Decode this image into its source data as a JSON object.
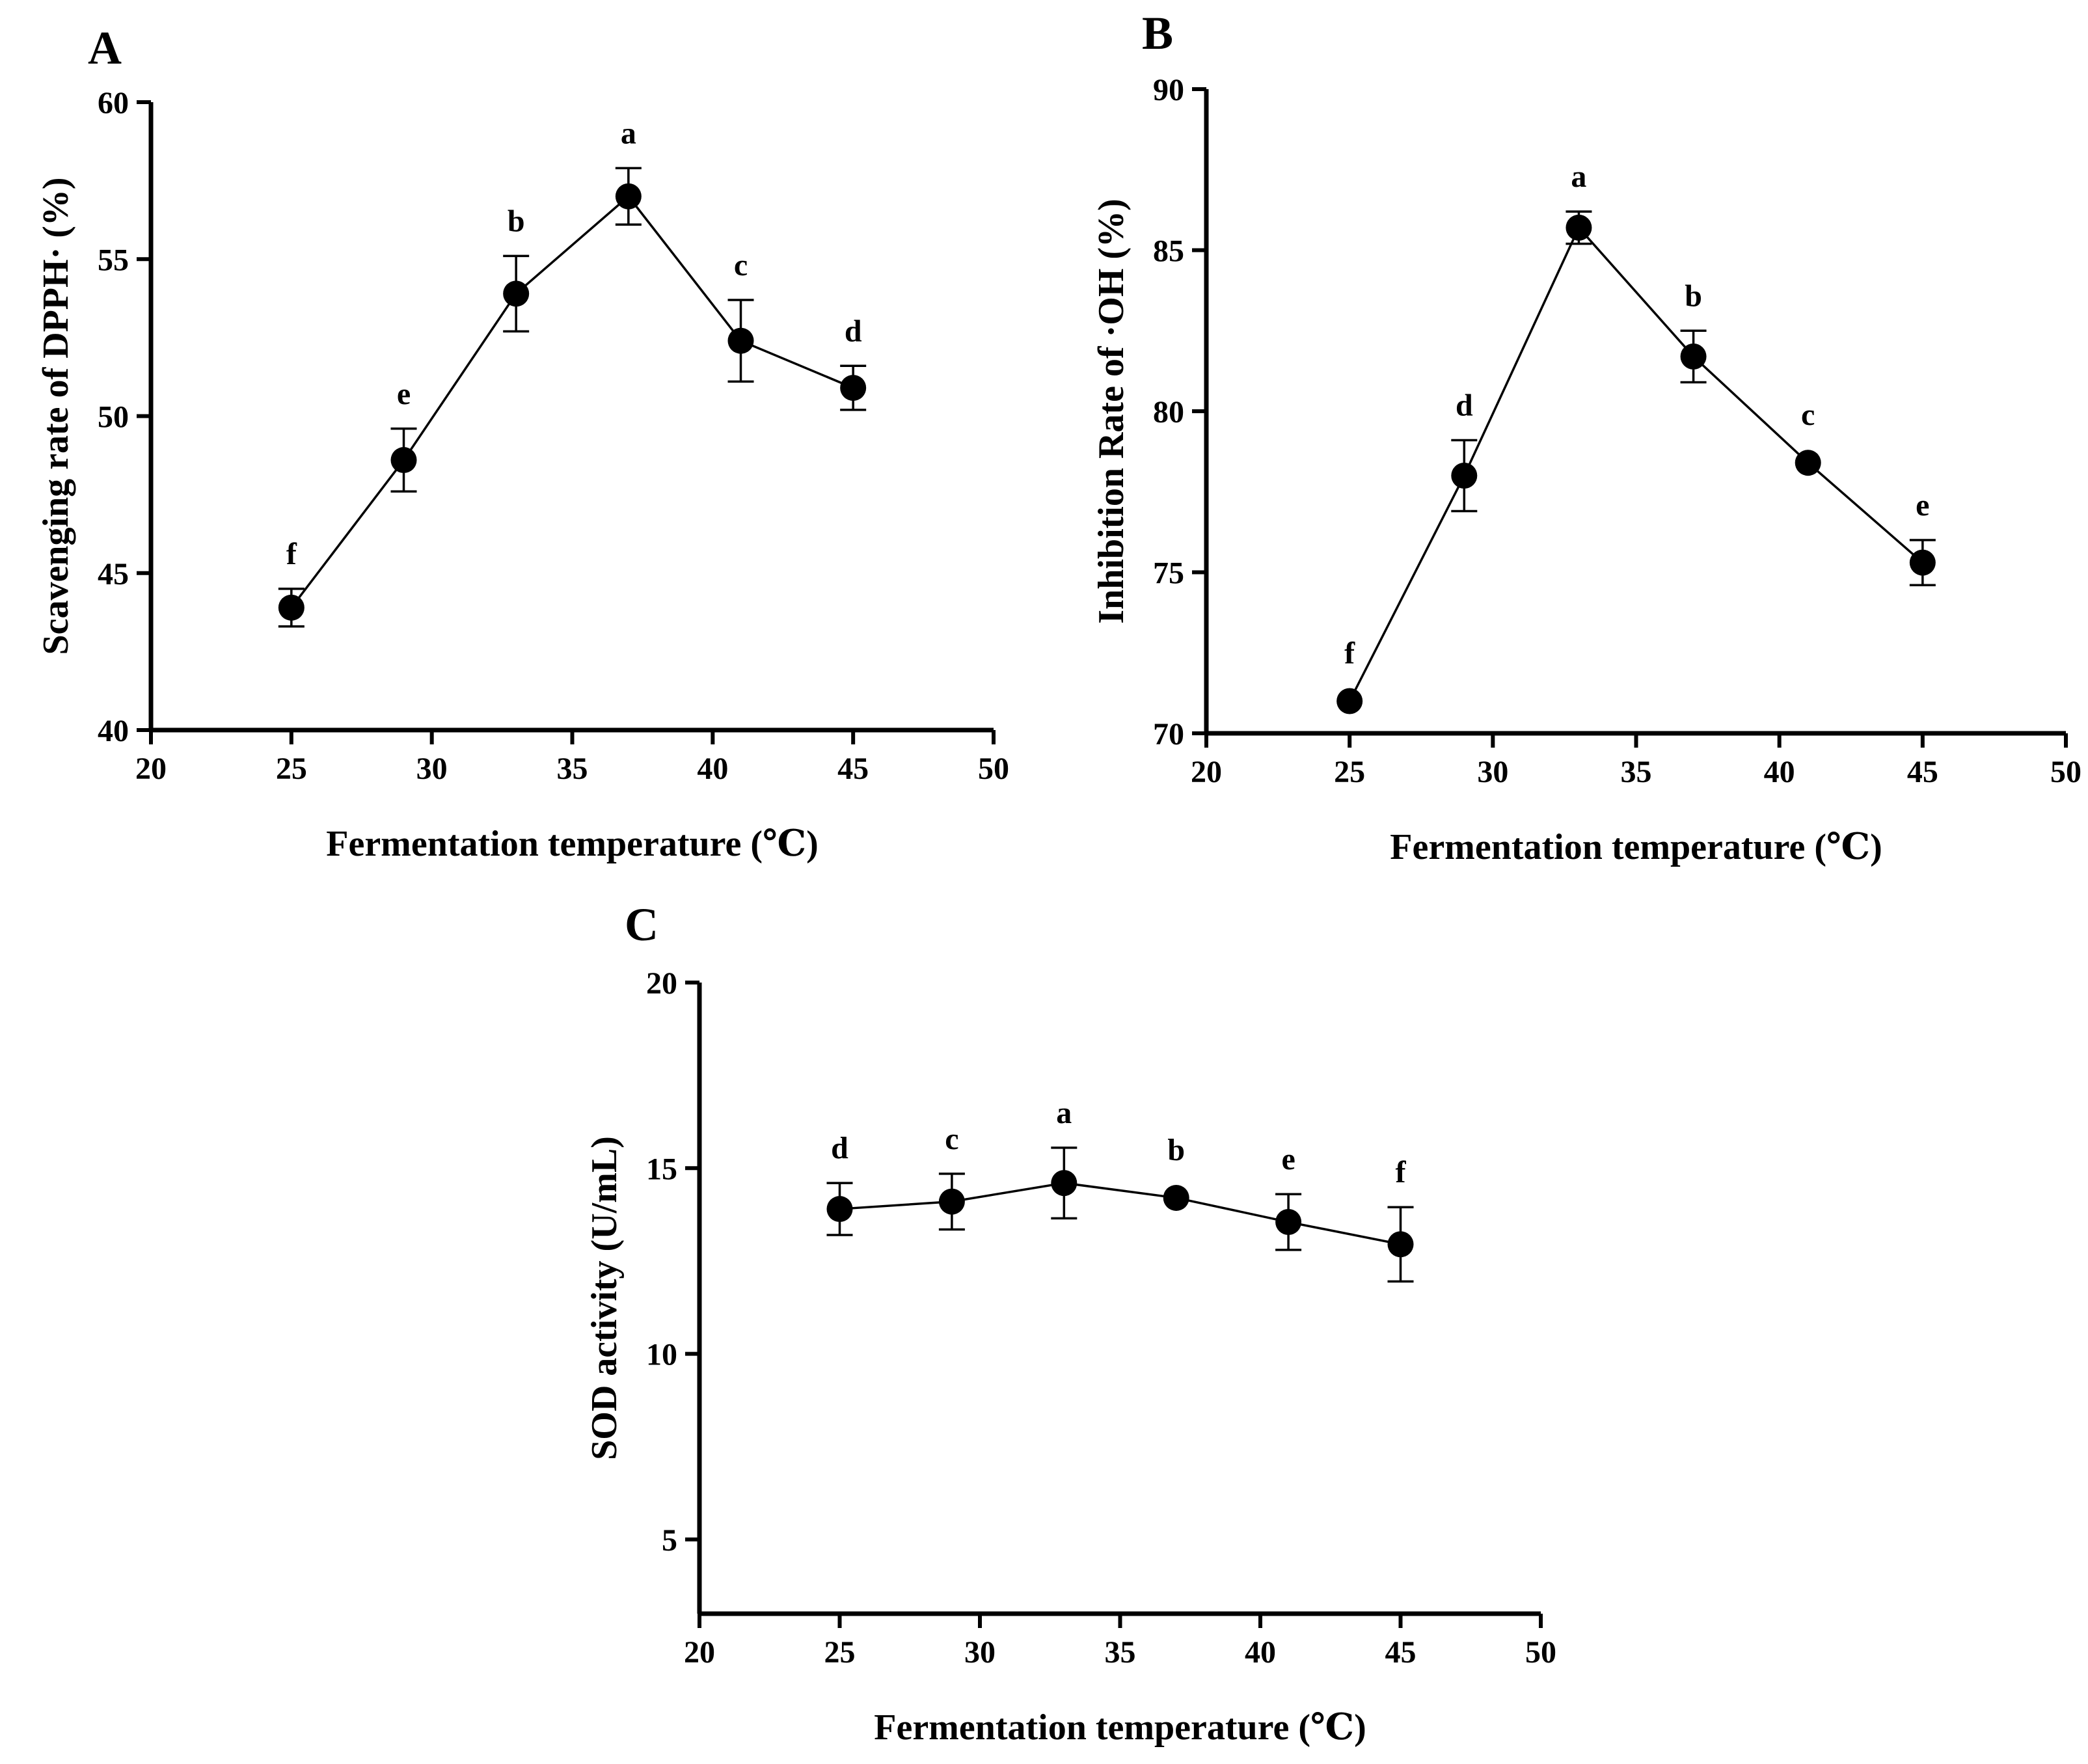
{
  "chart_data": [
    {
      "type": "line",
      "panel": "A",
      "xlabel": "Fermentation temperature (℃)",
      "ylabel": "Scavenging rate of DPPH· (%)",
      "xlim": [
        20,
        50
      ],
      "ylim": [
        40,
        60
      ],
      "xticks": [
        20,
        25,
        30,
        35,
        40,
        45,
        50
      ],
      "yticks": [
        40,
        45,
        50,
        55,
        60
      ],
      "x": [
        25,
        29,
        33,
        37,
        41,
        45
      ],
      "y": [
        43.9,
        48.6,
        53.9,
        57.0,
        52.4,
        50.9
      ],
      "err": [
        0.6,
        1.0,
        1.2,
        0.9,
        1.3,
        0.7
      ],
      "labels": [
        "f",
        "e",
        "b",
        "a",
        "c",
        "d"
      ]
    },
    {
      "type": "line",
      "panel": "B",
      "xlabel": "Fermentation temperature (℃)",
      "ylabel": "Inhibition Rate of ·OH (%)",
      "xlim": [
        20,
        50
      ],
      "ylim": [
        70,
        90
      ],
      "xticks": [
        20,
        25,
        30,
        35,
        40,
        45,
        50
      ],
      "yticks": [
        70,
        75,
        80,
        85,
        90
      ],
      "x": [
        25,
        29,
        33,
        37,
        41,
        45
      ],
      "y": [
        71.0,
        78.0,
        85.7,
        81.7,
        78.4,
        75.3
      ],
      "err": [
        0.0,
        1.1,
        0.5,
        0.8,
        0.0,
        0.7
      ],
      "labels": [
        "f",
        "d",
        "a",
        "b",
        "c",
        "e"
      ]
    },
    {
      "type": "line",
      "panel": "C",
      "xlabel": "Fermentation temperature (℃)",
      "ylabel": "SOD activity (U/mL)",
      "xlim": [
        20,
        50
      ],
      "ylim": [
        3,
        20
      ],
      "xticks": [
        20,
        25,
        30,
        35,
        40,
        45,
        50
      ],
      "yticks": [
        5,
        10,
        15,
        20
      ],
      "x": [
        25,
        29,
        33,
        37,
        41,
        45
      ],
      "y": [
        13.9,
        14.1,
        14.6,
        14.2,
        13.55,
        12.95
      ],
      "err": [
        0.7,
        0.75,
        0.95,
        0.0,
        0.75,
        1.0
      ],
      "labels": [
        "d",
        "c",
        "a",
        "b",
        "e",
        "f"
      ]
    }
  ]
}
